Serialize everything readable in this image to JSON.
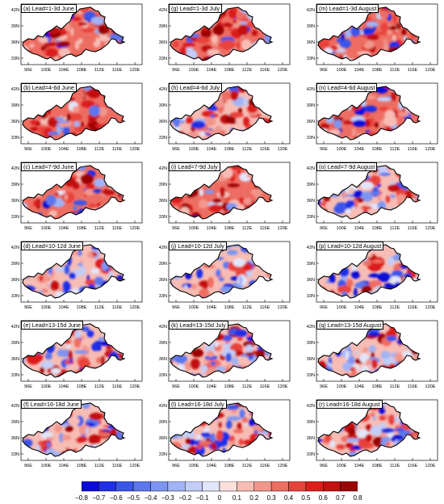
{
  "panels": [
    {
      "label": "(a) Lead=1-3d June"
    },
    {
      "label": "(g) Lead=1-3d July"
    },
    {
      "label": "(m) Lead=1-3d August"
    },
    {
      "label": "(b) Lead=4-6d June"
    },
    {
      "label": "(h) Lead=4-6d July"
    },
    {
      "label": "(n) Lead=4-6d August"
    },
    {
      "label": "(c) Lead=7-9d June"
    },
    {
      "label": "(i) Lead=7-9d July"
    },
    {
      "label": "(o) Lead=7-9d August"
    },
    {
      "label": "(d) Lead=10-12d June"
    },
    {
      "label": "(j) Lead=10-12d July"
    },
    {
      "label": "(p) Lead=10-12d August"
    },
    {
      "label": "(e) Lead=13-15d June"
    },
    {
      "label": "(k) Lead=13-15d July"
    },
    {
      "label": "(q) Lead=13-15d August"
    },
    {
      "label": "(f) Lead=16-18d June"
    },
    {
      "label": "(l) Lead=16-18d July"
    },
    {
      "label": "(r) Lead=16-18d August"
    }
  ],
  "x_ticks": [
    "96E",
    "100E",
    "104E",
    "108E",
    "112E",
    "116E",
    "120E"
  ],
  "y_ticks": [
    "42N",
    "39N",
    "36N",
    "33N"
  ],
  "colorbar": {
    "labels": [
      "−0.8",
      "−0.7",
      "−0.6",
      "−0.5",
      "−0.4",
      "−0.3",
      "−0.2",
      "−0.1",
      "0",
      "0.1",
      "0.2",
      "0.3",
      "0.4",
      "0.5",
      "0.6",
      "0.7",
      "0.8"
    ],
    "colors": [
      "#0b0bd9",
      "#1f2fe6",
      "#3a55ea",
      "#5b76ee",
      "#7d95f1",
      "#a1b3f4",
      "#c3cdf7",
      "#e2e6fa",
      "#fbe0dc",
      "#f7bcb4",
      "#f2968b",
      "#ee6d62",
      "#e8433b",
      "#dc1e1a",
      "#c30f0d",
      "#9b0505"
    ]
  }
}
